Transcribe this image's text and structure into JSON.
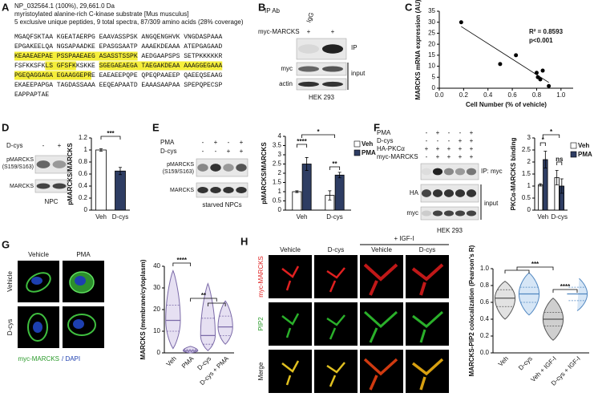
{
  "panel_labels": [
    "A",
    "B",
    "C",
    "D",
    "E",
    "F",
    "G",
    "H"
  ],
  "sequence": {
    "header": [
      "NP_032564.1 (100%), 29,661.0 Da",
      "myristoylated alanine-rich C-kinase substrate [Mus musculus]",
      "5 exclusive unique peptides, 9 total spectra, 87/309 amino acids (28% coverage)"
    ],
    "lines": [
      [
        {
          "text": "MGAQFSKTAA KGEATAERPG EAAVASSPSK ANGQENGHVK VNGDASPAAA",
          "highlight": false
        }
      ],
      [
        {
          "text": "EPGAKEELQA NGSAPAADKE EPASGSAATP AAAEKDEAAA ATEPGAGAAD",
          "highlight": false
        }
      ],
      [
        {
          "text": "KEAAEAEPAE PSSPAAEAEG ASASSTSSPK",
          "highlight": true
        },
        {
          "text": " AEDGAAPSPS SETPKKKKKR",
          "highlight": false
        }
      ],
      [
        {
          "text": "FSFKKSFK",
          "highlight": false
        },
        {
          "text": "LS GFSFK",
          "highlight": true
        },
        {
          "text": "KSKKE ",
          "highlight": false
        },
        {
          "text": "SGEGAEAEGA TAEGAKDEAA AAAGGEGAAA",
          "highlight": true
        }
      ],
      [
        {
          "text": "PGEQAGGAGA EGAAGGEPR",
          "highlight": true
        },
        {
          "text": "E EAEAEEPQPE QPEQPAAEEP QAEEQSEAAG",
          "highlight": false
        }
      ],
      [
        {
          "text": "EKAEEPAPGA TAGDASSAAA EEQEAPAATD EAAASAAPAA SPEPQPECSP",
          "highlight": false
        }
      ],
      [
        {
          "text": "EAPPAPTAE",
          "highlight": false
        }
      ]
    ]
  },
  "blots": {
    "B": {
      "header": "IP Ab",
      "lane_labels": [
        "IgG"
      ],
      "conditions": [
        {
          "label": "myc-MARCKS",
          "signs": [
            "+",
            "+"
          ]
        }
      ],
      "left_labels": [
        "myc",
        "actin"
      ],
      "right_labels": [
        "IP",
        "input"
      ],
      "footer": "HEK 293"
    },
    "D": {
      "conditions": [
        {
          "label": "D-cys",
          "signs": [
            "-",
            "+"
          ]
        }
      ],
      "left_labels": [
        "pMARCKS",
        "(S159/S163)",
        "MARCKS"
      ],
      "footer": "NPC"
    },
    "E": {
      "conditions": [
        {
          "label": "PMA",
          "signs": [
            "-",
            "+",
            "-",
            "+"
          ]
        },
        {
          "label": "D-cys",
          "signs": [
            "-",
            "-",
            "+",
            "+"
          ]
        }
      ],
      "left_labels": [
        "pMARCKS",
        "(S159/S163)",
        "MARCKS"
      ],
      "footer": "starved NPCs"
    },
    "F": {
      "conditions": [
        {
          "label": "PMA",
          "signs": [
            "-",
            "+",
            "-",
            "-",
            "+"
          ]
        },
        {
          "label": "D-cys",
          "signs": [
            "-",
            "-",
            "-",
            "+",
            "+"
          ]
        },
        {
          "label": "HA-PKCα",
          "signs": [
            "+",
            "+",
            "+",
            "+",
            "+"
          ]
        },
        {
          "label": "myc-MARCKS",
          "signs": [
            "-",
            "+",
            "+",
            "+",
            "+"
          ]
        }
      ],
      "left_labels": [
        "HA",
        "myc"
      ],
      "right_labels": [
        "IP: myc",
        "input"
      ],
      "footer": "HEK 293"
    }
  },
  "micrographs": {
    "G": {
      "columns": [
        "Vehicle",
        "PMA"
      ],
      "rows": [
        "Vehicle",
        "D-cys"
      ],
      "caption": [
        "myc-MARCKS",
        "/ DAPI"
      ]
    },
    "H": {
      "treatment": "+ IGF-I",
      "columns": [
        "Vehicle",
        "D-cys",
        "Vehicle",
        "D-cys"
      ],
      "rows": [
        "myc-MARCKS",
        "PIP2",
        "Merge"
      ]
    }
  },
  "chart_data": [
    {
      "type": "scatter",
      "ylabel": "MARCKS mRNA expression (AU)",
      "xlabel": "Cell Number (% of vehicle)",
      "annotations": [
        "R² = 0.8593",
        "p<0.001"
      ],
      "x": [
        0.18,
        0.5,
        0.63,
        0.8,
        0.81,
        0.83,
        0.85,
        0.9
      ],
      "values": [
        30,
        11,
        15,
        7,
        5,
        4,
        8,
        1
      ],
      "color": "#000000",
      "xlim": [
        0,
        1.1
      ],
      "ylim": [
        0,
        35
      ],
      "xticks": [
        {
          "value": 0,
          "label": "0.0"
        },
        0.2,
        0.4,
        0.6,
        0.8,
        {
          "value": 1,
          "label": "1.0"
        }
      ],
      "yticks": [
        0,
        5,
        10,
        15,
        20,
        25,
        30,
        35
      ],
      "trendline": true
    },
    {
      "type": "bar",
      "ylabel": "pMARCKS/MARCKS",
      "categories": [
        "Veh",
        "D-cys"
      ],
      "values": [
        1.0,
        0.65
      ],
      "errors": [
        0.02,
        0.06
      ],
      "colors": [
        "#ffffff",
        "#2e3d63"
      ],
      "ylim": [
        0,
        1.2
      ],
      "yticks": [
        0,
        0.2,
        0.4,
        0.6,
        0.8,
        1,
        1.2
      ],
      "annotations": [
        "***"
      ]
    },
    {
      "type": "bar",
      "ylabel": "pMARCKS/MARCKS",
      "categories": [
        "Veh",
        "D-cys"
      ],
      "series": [
        {
          "name": "Veh",
          "color": "#ffffff",
          "values": [
            1.0,
            0.8
          ],
          "errors": [
            0.05,
            0.25
          ]
        },
        {
          "name": "PMA",
          "color": "#2e3d63",
          "values": [
            2.5,
            1.9
          ],
          "errors": [
            0.35,
            0.15
          ]
        }
      ],
      "ylim": [
        0,
        4
      ],
      "yticks": [
        0,
        0.5,
        1,
        1.5,
        2,
        2.5,
        3,
        3.5,
        4
      ],
      "annotations": [
        "****",
        "*",
        "**"
      ],
      "legend": "upper right"
    },
    {
      "type": "bar",
      "ylabel": "PKCα-MARCKS binding",
      "categories": [
        "Veh",
        "D-cys"
      ],
      "series": [
        {
          "name": "Veh",
          "color": "#ffffff",
          "values": [
            1.05,
            1.35
          ],
          "errors": [
            0.05,
            0.3
          ]
        },
        {
          "name": "PMA",
          "color": "#2e3d63",
          "values": [
            2.1,
            1.0
          ],
          "errors": [
            0.35,
            0.3
          ]
        }
      ],
      "ylim": [
        0,
        3
      ],
      "yticks": [
        0,
        0.5,
        1,
        1.5,
        2,
        2.5,
        3
      ],
      "annotations": [
        "*",
        "*",
        "ns"
      ],
      "legend": "upper right"
    },
    {
      "type": "violin",
      "ylabel": "MARCKS (membrane/cytoplasm)",
      "categories": [
        "Veh",
        "PMA",
        "D-cys",
        "D-cys + PMA"
      ],
      "stats": [
        {
          "min": 2,
          "q1": 10,
          "median": 15,
          "q3": 22,
          "max": 38
        },
        {
          "min": 0,
          "q1": 0.5,
          "median": 1,
          "q3": 1.5,
          "max": 3
        },
        {
          "min": 1,
          "q1": 4,
          "median": 8,
          "q3": 16,
          "max": 32
        },
        {
          "min": 4,
          "q1": 8,
          "median": 12,
          "q3": 17,
          "max": 24
        }
      ],
      "colors": [
        "#7b6aa8",
        "#7b6aa8",
        "#7b6aa8",
        "#7b6aa8"
      ],
      "fills": [
        "#e6e0f2",
        "#e6e0f2",
        "#e6e0f2",
        "#e6e0f2"
      ],
      "ylim": [
        0,
        40
      ],
      "yticks": [
        0,
        10,
        20,
        30,
        40
      ],
      "annotations": [
        "****",
        "**"
      ]
    },
    {
      "type": "violin",
      "ylabel": "MARCKS-PIP2 colocalization (Pearson's R)",
      "categories": [
        "Veh",
        "D-cys",
        "Veh + IGF-I",
        "D-cys + IGF-I"
      ],
      "stats": [
        {
          "min": 0.4,
          "q1": 0.55,
          "median": 0.65,
          "q3": 0.75,
          "max": 0.85
        },
        {
          "min": 0.45,
          "q1": 0.6,
          "median": 0.7,
          "q3": 0.78,
          "max": 0.95
        },
        {
          "min": 0.15,
          "q1": 0.32,
          "median": 0.4,
          "q3": 0.48,
          "max": 0.65
        },
        {
          "min": 0.5,
          "q1": 0.62,
          "median": 0.7,
          "q3": 0.78,
          "max": 0.9
        }
      ],
      "colors": [
        "#555555",
        "#4f86c0",
        "#555555",
        "#4f86c0"
      ],
      "fills": [
        "#e2e2e2",
        "#d6e6f6",
        "#cfcfcf",
        "#d6e6f6"
      ],
      "ylim": [
        0,
        1
      ],
      "yticks": [
        {
          "value": 0,
          "label": "0.0"
        },
        0.2,
        0.4,
        0.6,
        0.8,
        {
          "value": 1,
          "label": "1.0"
        }
      ],
      "annotations": [
        "***",
        "****"
      ]
    }
  ]
}
